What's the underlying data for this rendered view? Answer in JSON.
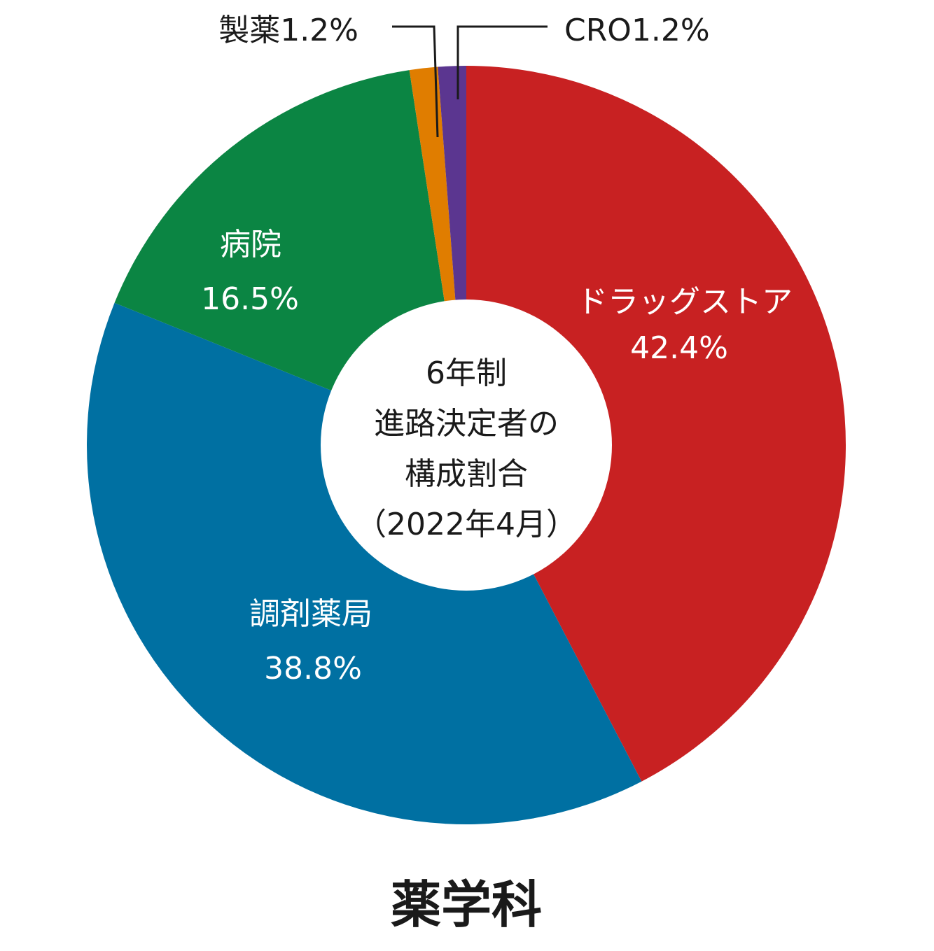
{
  "chart_data": {
    "type": "pie",
    "style": "donut",
    "center_text": [
      "6年制",
      "進路決定者の",
      "構成割合",
      "（2022年4月）"
    ],
    "footer": "薬学科",
    "slices": [
      {
        "name": "ドラッグストア",
        "label": "42.4%",
        "value": 42.4,
        "color": "#c82122"
      },
      {
        "name": "調剤薬局",
        "label": "38.8%",
        "value": 38.8,
        "color": "#0070a2"
      },
      {
        "name": "病院",
        "label": "16.5%",
        "value": 16.5,
        "color": "#0b8543"
      },
      {
        "name": "製薬",
        "label": "1.2%",
        "value": 1.2,
        "color": "#e07d00"
      },
      {
        "name": "CRO",
        "label": "1.2%",
        "value": 1.2,
        "color": "#5b3690"
      }
    ]
  }
}
